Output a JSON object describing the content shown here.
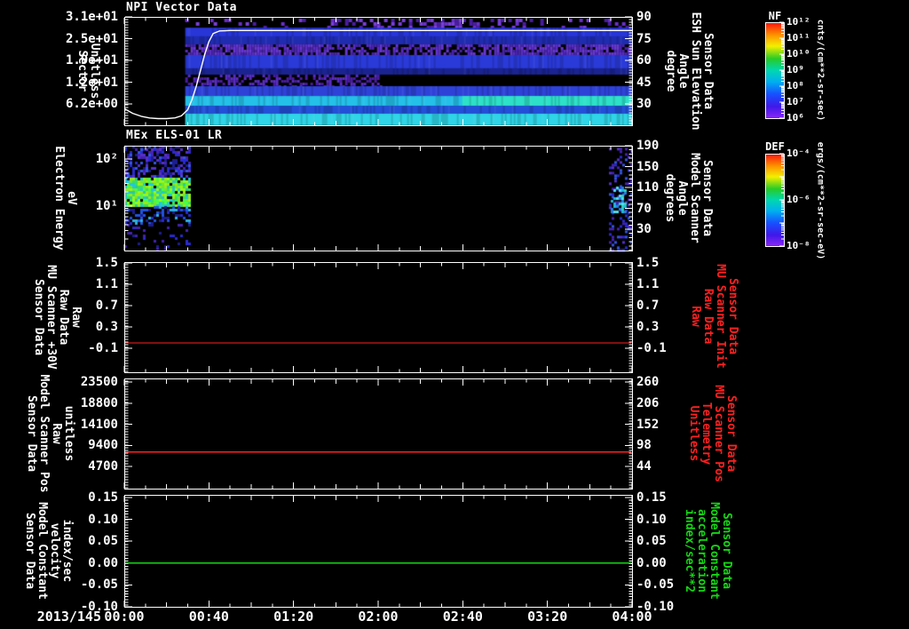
{
  "window": {
    "background": "#000000",
    "foreground": "#ffffff"
  },
  "x_axis": {
    "date_label": "2013/145",
    "time_ticks": [
      "00:00",
      "00:40",
      "01:20",
      "02:00",
      "02:40",
      "03:20",
      "04:00"
    ]
  },
  "panels": [
    {
      "title": "NPI Vector Data",
      "left_label_lines": [
        "Sector",
        "Unitless"
      ],
      "left_tick_labels": [
        "3.1e+01",
        "2.5e+01",
        "1.9e+01",
        "1.2e+01",
        "6.2e+00"
      ],
      "right_label_lines": [
        "Sensor Data",
        "ESH Sun Elevation",
        "Angle",
        "degree"
      ],
      "right_tick_labels": [
        "90",
        "75",
        "60",
        "45",
        "30"
      ],
      "right_label_color": "#ffffff"
    },
    {
      "title": "MEx ELS-01 LR",
      "left_label_lines": [
        "Electron Energy",
        "eV"
      ],
      "left_tick_labels": [
        "10²",
        "10¹"
      ],
      "right_label_lines": [
        "Sensor Data",
        "Model Scanner",
        "Angle",
        "degrees"
      ],
      "right_tick_labels": [
        "190",
        "150",
        "110",
        "70",
        "30"
      ],
      "right_label_color": "#ffffff"
    },
    {
      "title": "",
      "left_label_lines": [
        "Sensor Data",
        "MU Scanner +30V",
        "Raw Data",
        "Raw"
      ],
      "left_tick_labels": [
        "1.5",
        "1.1",
        "0.7",
        "0.3",
        "-0.1"
      ],
      "right_label_lines": [
        "Sensor Data",
        "MU Scanner Init",
        "Raw Data",
        "Raw"
      ],
      "right_tick_labels": [
        "1.5",
        "1.1",
        "0.7",
        "0.3",
        "-0.1"
      ],
      "right_label_color": "#ff2020"
    },
    {
      "title": "",
      "left_label_lines": [
        "Sensor Data",
        "Model Scanner Pos",
        "Raw",
        "unitless"
      ],
      "left_tick_labels": [
        "23500",
        "18800",
        "14100",
        "9400",
        "4700"
      ],
      "right_label_lines": [
        "Sensor Data",
        "MU Scanner Pos",
        "Telemetry",
        "Unitless"
      ],
      "right_tick_labels": [
        "260",
        "206",
        "152",
        "98",
        "44"
      ],
      "right_label_color": "#ff2020"
    },
    {
      "title": "",
      "left_label_lines": [
        "Sensor Data",
        "Model Constant",
        "velocity",
        "index/sec"
      ],
      "left_tick_labels": [
        "0.15",
        "0.10",
        "0.05",
        "0.00",
        "-0.05",
        "-0.10"
      ],
      "right_label_lines": [
        "Sensor Data",
        "Model Constant",
        "acceleration",
        "index/sec**2"
      ],
      "right_tick_labels": [
        "0.15",
        "0.10",
        "0.05",
        "0.00",
        "-0.05",
        "-0.10"
      ],
      "right_label_color": "#15d615"
    }
  ],
  "colorbars": [
    {
      "name": "NF",
      "tick_labels": [
        "10¹²",
        "10¹¹",
        "10¹⁰",
        "10⁹",
        "10⁸",
        "10⁷",
        "10⁶"
      ],
      "unit": "cnts/(cm**2-sr-sec)",
      "gradient": [
        [
          0,
          "#ff1010"
        ],
        [
          0.13,
          "#ff9000"
        ],
        [
          0.25,
          "#f4f000"
        ],
        [
          0.38,
          "#28cc28"
        ],
        [
          0.5,
          "#00d8b0"
        ],
        [
          0.62,
          "#00b0f0"
        ],
        [
          0.75,
          "#1850ff"
        ],
        [
          0.88,
          "#4018e8"
        ],
        [
          1,
          "#8a28f8"
        ]
      ]
    },
    {
      "name": "DEF",
      "tick_labels": [
        "10⁻⁴",
        "10⁻⁶",
        "10⁻⁸"
      ],
      "unit": "ergs/(cm**2-sr-sec-eV)",
      "gradient": [
        [
          0,
          "#ff1010"
        ],
        [
          0.13,
          "#ff9000"
        ],
        [
          0.25,
          "#f4f000"
        ],
        [
          0.38,
          "#28cc28"
        ],
        [
          0.5,
          "#00d8b0"
        ],
        [
          0.62,
          "#00b0f0"
        ],
        [
          0.75,
          "#1850ff"
        ],
        [
          0.88,
          "#4018e8"
        ],
        [
          1,
          "#8a28f8"
        ]
      ]
    }
  ],
  "chart_data": [
    {
      "type": "heatmap",
      "panel": 1,
      "title": "NPI Vector Data",
      "ylabel": "Sector (Unitless)",
      "y_tick_values": [
        31,
        25,
        19,
        12,
        6.2
      ],
      "right_axis_label": "Sensor Data ESH Sun Elevation Angle (degree)",
      "right_tick_values": [
        90,
        75,
        60,
        45,
        30
      ],
      "x_range": [
        "2013/145 00:00",
        "2013/145 04:00"
      ],
      "colorbar": "NF",
      "value_range": [
        "1e6",
        "1e12"
      ],
      "data_start_frac": 0.12,
      "notes": "spectrogram black (no data) before ~00:29; horizontal sector bands afterward",
      "overlay_line": {
        "label": "ESH Sun Elevation Angle",
        "color": "#ffffff",
        "points": [
          [
            "00:00",
            26.8
          ],
          [
            "00:04",
            23.5
          ],
          [
            "00:08",
            21.5
          ],
          [
            "00:12",
            20.3
          ],
          [
            "00:16",
            19.9
          ],
          [
            "00:20",
            19.9
          ],
          [
            "00:24",
            20.4
          ],
          [
            "00:27",
            21.8
          ],
          [
            "00:30",
            26
          ],
          [
            "00:32",
            33
          ],
          [
            "00:34",
            42
          ],
          [
            "00:36",
            53
          ],
          [
            "00:38",
            64
          ],
          [
            "00:40",
            73
          ],
          [
            "00:42",
            78.5
          ],
          [
            "00:45",
            80.3
          ],
          [
            "00:50",
            80.6
          ],
          [
            "04:00",
            80.6
          ]
        ]
      },
      "bands": [
        {
          "kind": "speckle",
          "y0": 0.016,
          "y1": 0.1,
          "colors": [
            "#6a30c8",
            "#4a1da0",
            "#7a40d8"
          ],
          "density": 0.18,
          "cell": 4,
          "xdense": [
            0.33,
            0.75
          ],
          "density2": 0.45
        },
        {
          "kind": "solid",
          "y0": 0.1,
          "y1": 0.18,
          "color": "#2836d8"
        },
        {
          "kind": "solid",
          "y0": 0.18,
          "y1": 0.254,
          "color": "#1f2cb0"
        },
        {
          "kind": "speckle",
          "y0": 0.254,
          "y1": 0.352,
          "colors": [
            "#5a2ec0",
            "#6838d0",
            "#4824a8"
          ],
          "density": 0.85,
          "cell": 3,
          "xdense": [
            0.3,
            0.72
          ],
          "density2": 0.55
        },
        {
          "kind": "solid",
          "y0": 0.352,
          "y1": 0.475,
          "color": "#2a3ad8"
        },
        {
          "kind": "solid",
          "y0": 0.475,
          "y1": 0.533,
          "color": "#1a2390"
        },
        {
          "kind": "speckle",
          "y0": 0.533,
          "y1": 0.639,
          "colors": [
            "#5a2ec0",
            "#4a1da0"
          ],
          "density": 0.5,
          "cell": 3,
          "xmax": 0.44
        },
        {
          "kind": "solid",
          "y0": 0.639,
          "y1": 0.73,
          "color": "#2f42d8"
        },
        {
          "kind": "solid",
          "y0": 0.73,
          "y1": 0.82,
          "color": "#25c0e8",
          "color2": "#2ee0c8",
          "xsplit": 0.62
        },
        {
          "kind": "solid",
          "y0": 0.82,
          "y1": 0.893,
          "color": "#2350d8"
        },
        {
          "kind": "solid",
          "y0": 0.893,
          "y1": 1.0,
          "color": "#2fd4e6"
        }
      ]
    },
    {
      "type": "heatmap",
      "panel": 2,
      "title": "MEx ELS-01 LR",
      "ylabel": "Electron Energy (eV)",
      "yscale": "log",
      "y_tick_values": [
        100,
        10
      ],
      "right_axis_label": "Sensor Data Model Scanner Angle (degrees)",
      "right_tick_values": [
        190,
        150,
        110,
        70,
        30
      ],
      "colorbar": "DEF",
      "value_range": [
        "1e-8",
        "1e-4"
      ],
      "data_intervals": [
        [
          "00:00",
          "00:31"
        ],
        [
          "03:50",
          "04:00"
        ]
      ],
      "peak_band_eV": [
        8,
        30
      ],
      "regions": [
        {
          "x0": 0.0,
          "x1": 0.128,
          "y0": 0.0,
          "y1": 0.305,
          "colors": [
            "#2a2ad0",
            "#4423b0",
            "#1d1d90",
            "#3355e0",
            "#5530c8"
          ],
          "density": 0.5,
          "cell": 3
        },
        {
          "x0": 0.0,
          "x1": 0.128,
          "y0": 0.305,
          "y1": 0.576,
          "colors": [
            "#38e060",
            "#70e830",
            "#2cc8a0",
            "#a0e818",
            "#20c8e0",
            "#48ff48",
            "#98f818"
          ],
          "density": 0.88,
          "cell": 3
        },
        {
          "x0": 0.0,
          "x1": 0.128,
          "y0": 0.576,
          "y1": 0.746,
          "colors": [
            "#2a2ad0",
            "#2255e0",
            "#1d1d90",
            "#30b0e0"
          ],
          "density": 0.42,
          "cell": 3
        },
        {
          "x0": 0.0,
          "x1": 0.128,
          "y0": 0.746,
          "y1": 1.0,
          "colors": [
            "#2a2ad0",
            "#4423b0",
            "#1d1d90"
          ],
          "density": 0.15,
          "cell": 3
        },
        {
          "x0": 0.9545,
          "x1": 1.0,
          "y0": 0.02,
          "y1": 1.0,
          "colors": [
            "#2a2ad0",
            "#4423b0",
            "#3355e0",
            "#5530c8"
          ],
          "density": 0.26,
          "cell": 3
        },
        {
          "x0": 0.958,
          "x1": 0.988,
          "y0": 0.39,
          "y1": 0.644,
          "colors": [
            "#20b8e0",
            "#50e0f0",
            "#2880e0",
            "#30d0c0"
          ],
          "density": 0.6,
          "cell": 3
        }
      ]
    },
    {
      "type": "line",
      "panel": 3,
      "ylabel": "Sensor Data MU Scanner +30V Raw Data (Raw)",
      "y_ticks": [
        1.5,
        1.1,
        0.7,
        0.3,
        -0.1
      ],
      "right_label": "Sensor Data MU Scanner Init Raw Data (Raw)",
      "series": [
        {
          "name": "MU Scanner +30V",
          "color": "#ff2020",
          "constant_value": 0.0
        }
      ]
    },
    {
      "type": "line",
      "panel": 4,
      "ylabel": "Sensor Data Model Scanner Pos Raw (unitless)",
      "y_ticks": [
        23500,
        18800,
        14100,
        9400,
        4700
      ],
      "right_label": "Sensor Data MU Scanner Pos Telemetry (Unitless)",
      "right_ticks": [
        260,
        206,
        152,
        98,
        44
      ],
      "series": [
        {
          "name": "Model Scanner Pos",
          "color": "#ff2020",
          "constant_value": 7900,
          "right_axis_value": 81
        }
      ]
    },
    {
      "type": "line",
      "panel": 5,
      "ylabel": "Sensor Data Model Constant velocity (index/sec)",
      "y_ticks": [
        0.15,
        0.1,
        0.05,
        0.0,
        -0.05,
        -0.1
      ],
      "right_label": "Sensor Data Model Constant acceleration (index/sec**2)",
      "series": [
        {
          "name": "Model Constant velocity",
          "color": "#15d615",
          "constant_value": 0.0
        }
      ]
    }
  ]
}
